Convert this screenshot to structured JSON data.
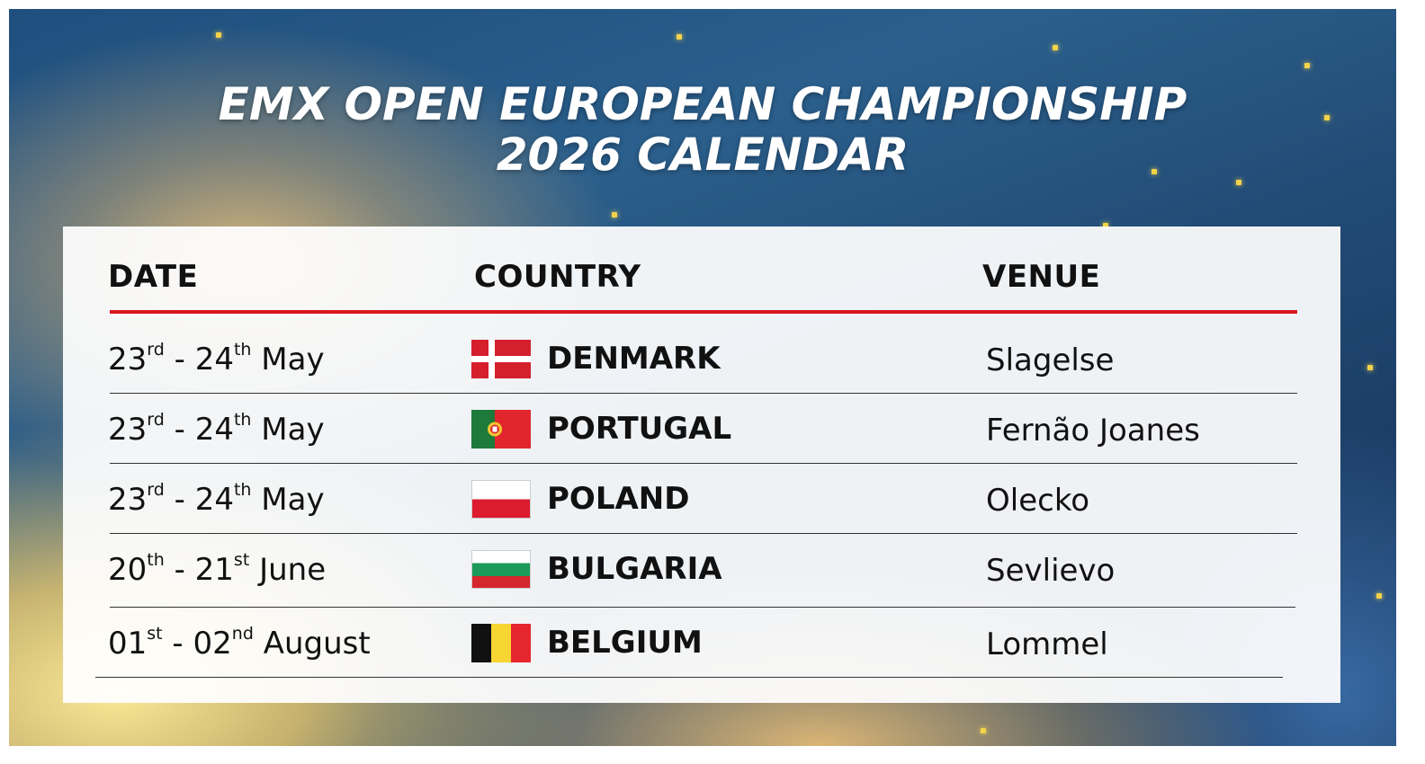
{
  "title": {
    "line1": "EMX OPEN EUROPEAN CHAMPIONSHIP",
    "line2": "2026 CALENDAR"
  },
  "table": {
    "headers": {
      "date": "DATE",
      "country": "COUNTRY",
      "venue": "VENUE"
    },
    "rows": [
      {
        "date_start": "23",
        "date_start_suffix": "rd",
        "date_end": "24",
        "date_end_suffix": "th",
        "month": "May",
        "flag_icon": "denmark-flag-icon",
        "country": "DENMARK",
        "venue": "Slagelse"
      },
      {
        "date_start": "23",
        "date_start_suffix": "rd",
        "date_end": "24",
        "date_end_suffix": "th",
        "month": "May",
        "flag_icon": "portugal-flag-icon",
        "country": "PORTUGAL",
        "venue": "Fernão Joanes"
      },
      {
        "date_start": "23",
        "date_start_suffix": "rd",
        "date_end": "24",
        "date_end_suffix": "th",
        "month": "May",
        "flag_icon": "poland-flag-icon",
        "country": "POLAND",
        "venue": "Olecko"
      },
      {
        "date_start": "20",
        "date_start_suffix": "th",
        "date_end": "21",
        "date_end_suffix": "st",
        "month": "June",
        "flag_icon": "bulgaria-flag-icon",
        "country": "BULGARIA",
        "venue": "Sevlievo"
      },
      {
        "date_start": "01",
        "date_start_suffix": "st",
        "date_end": "02",
        "date_end_suffix": "nd",
        "month": "August",
        "flag_icon": "belgium-flag-icon",
        "country": "BELGIUM",
        "venue": "Lommel"
      }
    ]
  },
  "colors": {
    "accent_rule": "#d9161f",
    "text": "#111111"
  }
}
